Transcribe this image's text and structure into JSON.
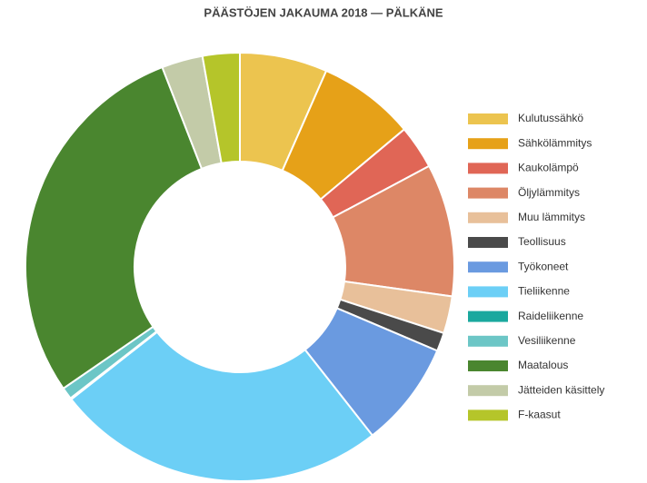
{
  "chart_data": {
    "type": "donut",
    "title": "PÄÄSTÖJEN JAKAUMA 2018 — PÄLKÄNE",
    "categories": [
      "Kulutussähkö",
      "Sähkölämmitys",
      "Kaukolämpö",
      "Öljylämmitys",
      "Muu lämmitys",
      "Teollisuus",
      "Työkoneet",
      "Tieliikenne",
      "Raideliikenne",
      "Vesiliikenne",
      "Maatalous",
      "Jätteiden käsittely",
      "F-kaasut"
    ],
    "values": [
      6.6,
      7.3,
      3.3,
      10.0,
      2.8,
      1.4,
      8.0,
      25.0,
      0.1,
      0.9,
      28.7,
      3.1,
      2.8
    ],
    "colors": [
      "#ecc44f",
      "#e6a118",
      "#e06656",
      "#dd8766",
      "#e8c09a",
      "#4a4a4a",
      "#6a9ae0",
      "#6ccff6",
      "#1aa89e",
      "#6cc6c6",
      "#4a862f",
      "#c3cba8",
      "#b5c52a"
    ],
    "legend": "right"
  }
}
